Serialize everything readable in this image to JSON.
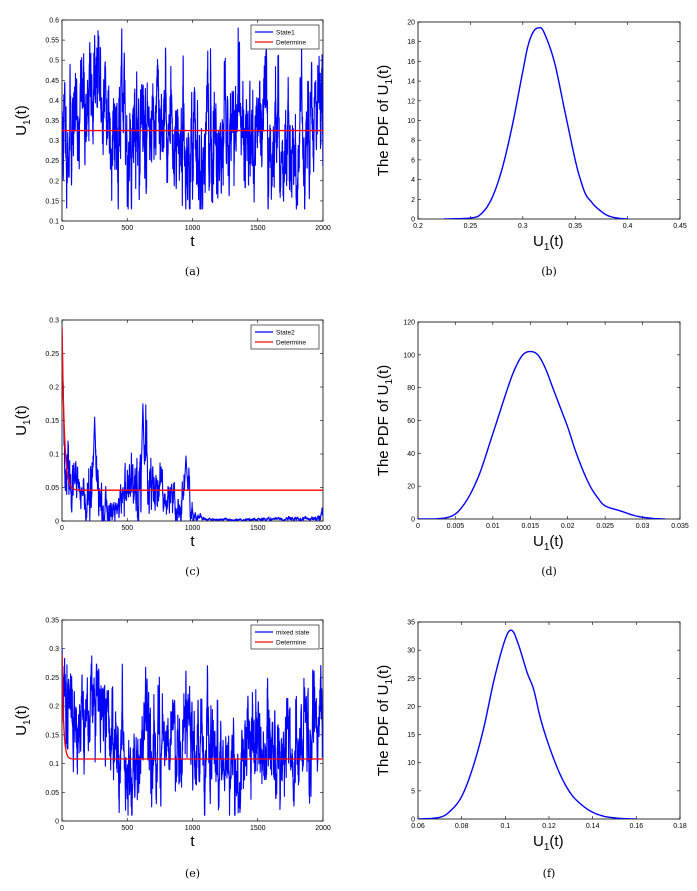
{
  "colors": {
    "stochastic": "#0000ff",
    "deterministic": "#ff0000",
    "axis": "#000000"
  },
  "chart_data": [
    {
      "id": "a",
      "type": "line",
      "caption": "(a)",
      "xlabel": "t",
      "ylabel_main": "U",
      "ylabel_sub": "1",
      "ylabel_tail": "(t)",
      "xlim": [
        0,
        2000
      ],
      "ylim": [
        0.1,
        0.6
      ],
      "xticks": [
        0,
        500,
        1000,
        1500,
        2000
      ],
      "xtick_labels": [
        "0",
        "500",
        "1000",
        "1500",
        "2000"
      ],
      "yticks": [
        0.1,
        0.15,
        0.2,
        0.25,
        0.3,
        0.35,
        0.4,
        0.45,
        0.5,
        0.55,
        0.6
      ],
      "ytick_labels": [
        "0.1",
        "0.15",
        "0.2",
        "0.25",
        "0.3",
        "0.35",
        "0.4",
        "0.45",
        "0.5",
        "0.55",
        "0.6"
      ],
      "legend": [
        "State1",
        "Determine"
      ],
      "series": [
        {
          "name": "State1",
          "kind": "noise",
          "start": 0.3,
          "mean": 0.32,
          "sd": 0.075,
          "theta": 0.18,
          "min": 0.13,
          "max": 0.58,
          "seed": 11,
          "x": [
            0,
            250,
            500,
            750,
            1000,
            1250,
            1500,
            1750,
            2000
          ],
          "y": [
            0.3,
            0.57,
            0.29,
            0.43,
            0.17,
            0.33,
            0.35,
            0.22,
            0.45
          ]
        },
        {
          "name": "Determine",
          "kind": "constant",
          "y0": 0.325,
          "y": 0.325
        }
      ]
    },
    {
      "id": "b",
      "type": "line",
      "caption": "(b)",
      "xlabel_main": "U",
      "xlabel_sub": "1",
      "xlabel_tail": "(t)",
      "ylabel_prefix": "The PDF of U",
      "ylabel_sub": "1",
      "ylabel_tail": "(t)",
      "xlim": [
        0.2,
        0.45
      ],
      "ylim": [
        0,
        20
      ],
      "xticks": [
        0.2,
        0.25,
        0.3,
        0.35,
        0.4,
        0.45
      ],
      "xtick_labels": [
        "0.2",
        "0.25",
        "0.3",
        "0.35",
        "0.4",
        "0.45"
      ],
      "yticks": [
        0,
        2,
        4,
        6,
        8,
        10,
        12,
        14,
        16,
        18,
        20
      ],
      "ytick_labels": [
        "0",
        "2",
        "4",
        "6",
        "8",
        "10",
        "12",
        "14",
        "16",
        "18",
        "20"
      ],
      "series": [
        {
          "name": "PDF",
          "x": [
            0.225,
            0.25,
            0.26,
            0.27,
            0.28,
            0.29,
            0.3,
            0.305,
            0.31,
            0.315,
            0.32,
            0.33,
            0.34,
            0.35,
            0.355,
            0.36,
            0.365,
            0.37,
            0.38,
            0.39,
            0.4
          ],
          "y": [
            0,
            0.1,
            0.5,
            2,
            5,
            9.5,
            15,
            17.6,
            19,
            19.4,
            19,
            16,
            11,
            6,
            4,
            2.5,
            1.8,
            1.2,
            0.4,
            0.1,
            0
          ]
        }
      ]
    },
    {
      "id": "c",
      "type": "line",
      "caption": "(c)",
      "xlabel": "t",
      "ylabel_main": "U",
      "ylabel_sub": "1",
      "ylabel_tail": "(t)",
      "xlim": [
        0,
        2000
      ],
      "ylim": [
        0,
        0.3
      ],
      "xticks": [
        0,
        500,
        1000,
        1500,
        2000
      ],
      "xtick_labels": [
        "0",
        "500",
        "1000",
        "1500",
        "2000"
      ],
      "yticks": [
        0,
        0.05,
        0.1,
        0.15,
        0.2,
        0.25,
        0.3
      ],
      "ytick_labels": [
        "0",
        "0.05",
        "0.1",
        "0.15",
        "0.2",
        "0.25",
        "0.3"
      ],
      "legend": [
        "State2",
        "Determine"
      ],
      "series": [
        {
          "name": "State2",
          "kind": "decay",
          "seed": 23,
          "x": [
            0,
            20,
            60,
            120,
            180,
            250,
            320,
            400,
            500,
            600,
            650,
            700,
            800,
            900,
            960,
            1000,
            1100,
            1500,
            1950,
            2000
          ],
          "y": [
            0.29,
            0.09,
            0.06,
            0.045,
            0.02,
            0.06,
            0.02,
            0.012,
            0.05,
            0.06,
            0.07,
            0.05,
            0.03,
            0.02,
            0.05,
            0.004,
            0.002,
            0.002,
            0.004,
            0.012
          ],
          "sd": [
            0.002,
            0.02,
            0.02,
            0.015,
            0.012,
            0.035,
            0.015,
            0.01,
            0.02,
            0.03,
            0.035,
            0.02,
            0.015,
            0.015,
            0.03,
            0.004,
            0.001,
            0.001,
            0.002,
            0.004
          ],
          "spikes": [
            {
              "t": 250,
              "v": 0.155
            },
            {
              "t": 620,
              "v": 0.175
            },
            {
              "t": 950,
              "v": 0.097
            }
          ]
        },
        {
          "name": "Determine",
          "kind": "exp",
          "y0": 0.29,
          "y": 0.046,
          "tau": 18
        }
      ]
    },
    {
      "id": "d",
      "type": "line",
      "caption": "(d)",
      "xlabel_main": "U",
      "xlabel_sub": "1",
      "xlabel_tail": "(t)",
      "ylabel_prefix": "The PDF of U",
      "ylabel_sub": "1",
      "ylabel_tail": "(t)",
      "xlim": [
        0,
        0.035
      ],
      "ylim": [
        0,
        120
      ],
      "xticks": [
        0,
        0.005,
        0.01,
        0.015,
        0.02,
        0.025,
        0.03,
        0.035
      ],
      "xtick_labels": [
        "0",
        "0.005",
        "0.01",
        "0.015",
        "0.02",
        "0.025",
        "0.03",
        "0.035"
      ],
      "yticks": [
        0,
        20,
        40,
        60,
        80,
        100,
        120
      ],
      "ytick_labels": [
        "0",
        "20",
        "40",
        "60",
        "80",
        "100",
        "120"
      ],
      "series": [
        {
          "name": "PDF",
          "x": [
            0,
            0.004,
            0.006,
            0.008,
            0.01,
            0.012,
            0.013,
            0.014,
            0.015,
            0.016,
            0.017,
            0.018,
            0.019,
            0.02,
            0.021,
            0.022,
            0.023,
            0.024,
            0.025,
            0.027,
            0.029,
            0.031,
            0.033
          ],
          "y": [
            0,
            1,
            8,
            25,
            52,
            80,
            92,
            100,
            102,
            100,
            92,
            80,
            68,
            56,
            42,
            30,
            20,
            13,
            8,
            5,
            2,
            0.5,
            0
          ]
        }
      ]
    },
    {
      "id": "e",
      "type": "line",
      "caption": "(e)",
      "xlabel": "t",
      "ylabel_main": "U",
      "ylabel_sub": "1",
      "ylabel_tail": "(t)",
      "xlim": [
        0,
        2000
      ],
      "ylim": [
        0,
        0.35
      ],
      "xticks": [
        0,
        500,
        1000,
        1500,
        2000
      ],
      "xtick_labels": [
        "0",
        "500",
        "1000",
        "1500",
        "2000"
      ],
      "yticks": [
        0,
        0.05,
        0.1,
        0.15,
        0.2,
        0.25,
        0.3,
        0.35
      ],
      "ytick_labels": [
        "0",
        "0.05",
        "0.1",
        "0.15",
        "0.2",
        "0.25",
        "0.3",
        "0.35"
      ],
      "legend": [
        "mixed state",
        "Determine"
      ],
      "series": [
        {
          "name": "mixed state",
          "kind": "noise",
          "start": 0.29,
          "mean": 0.11,
          "sd": 0.045,
          "theta": 0.15,
          "min": 0.01,
          "max": 0.3,
          "seed": 37,
          "x": [
            0,
            250,
            500,
            750,
            950,
            1250,
            1500,
            1750,
            2000
          ],
          "y": [
            0.29,
            0.3,
            0.12,
            0.21,
            0.25,
            0.03,
            0.17,
            0.12,
            0.15
          ]
        },
        {
          "name": "Determine",
          "kind": "exp",
          "y0": 0.29,
          "y": 0.108,
          "tau": 12
        }
      ]
    },
    {
      "id": "f",
      "type": "line",
      "caption": "(f)",
      "xlabel_main": "U",
      "xlabel_sub": "1",
      "xlabel_tail": "(t)",
      "ylabel_prefix": "The PDF of U",
      "ylabel_sub": "1",
      "ylabel_tail": "(t)",
      "xlim": [
        0.06,
        0.18
      ],
      "ylim": [
        0,
        35
      ],
      "xticks": [
        0.06,
        0.08,
        0.1,
        0.12,
        0.14,
        0.16,
        0.18
      ],
      "xtick_labels": [
        "0.06",
        "0.08",
        "0.1",
        "0.12",
        "0.14",
        "0.16",
        "0.18"
      ],
      "yticks": [
        0,
        5,
        10,
        15,
        20,
        25,
        30,
        35
      ],
      "ytick_labels": [
        "0",
        "5",
        "10",
        "15",
        "20",
        "25",
        "30",
        "35"
      ],
      "series": [
        {
          "name": "PDF",
          "x": [
            0.06,
            0.07,
            0.075,
            0.08,
            0.085,
            0.09,
            0.095,
            0.1,
            0.103,
            0.106,
            0.11,
            0.113,
            0.116,
            0.12,
            0.125,
            0.13,
            0.135,
            0.14,
            0.145,
            0.15,
            0.155,
            0.16
          ],
          "y": [
            0,
            0.3,
            1.5,
            4,
            9,
            16,
            25,
            32,
            33.5,
            31,
            26,
            23,
            18,
            13,
            8,
            4.5,
            2.5,
            1.2,
            0.5,
            0.2,
            0.05,
            0
          ]
        }
      ]
    }
  ]
}
